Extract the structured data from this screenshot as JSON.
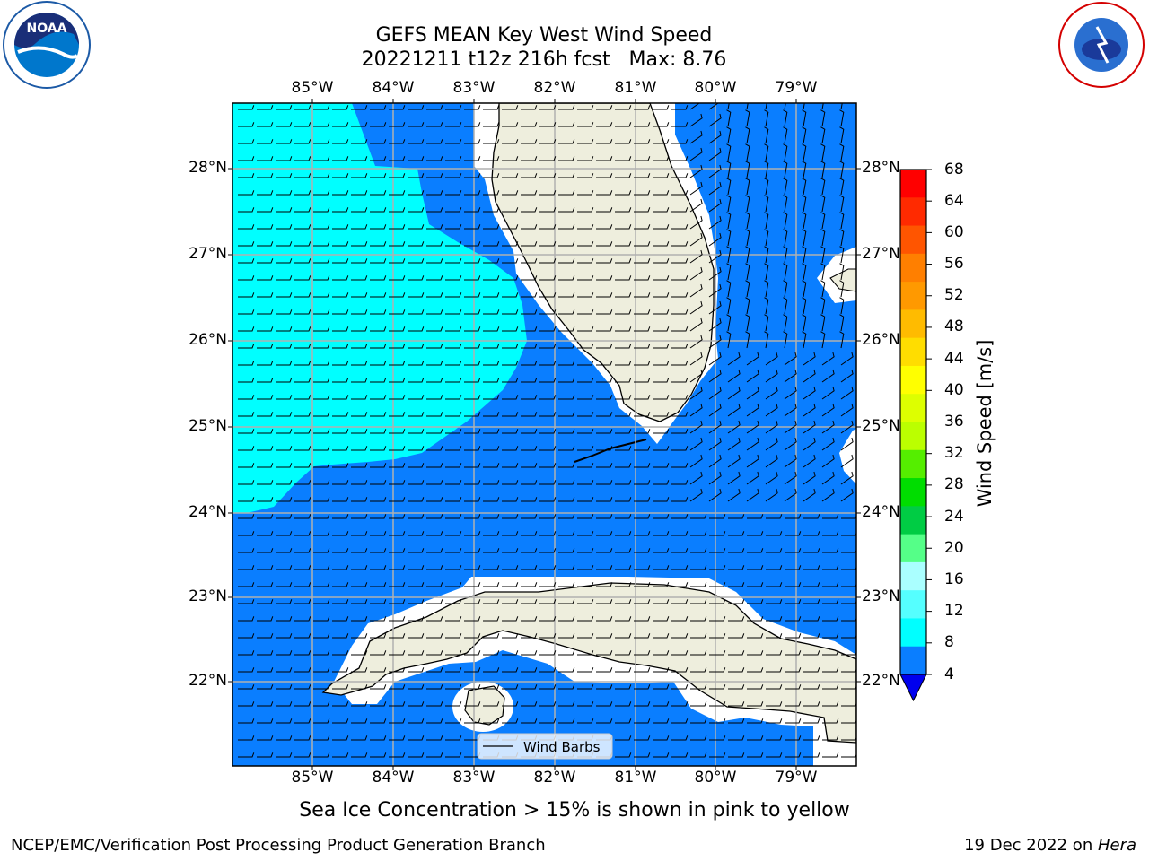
{
  "title": {
    "line1": "GEFS MEAN Key West Wind Speed",
    "line2": "20221211 t12z 216h fcst   Max: 8.76"
  },
  "map": {
    "lon_labels": [
      "85°W",
      "84°W",
      "83°W",
      "82°W",
      "81°W",
      "80°W",
      "79°W"
    ],
    "lat_labels": [
      "28°N",
      "27°N",
      "26°N",
      "25°N",
      "24°N",
      "23°N",
      "22°N"
    ],
    "legend_label": "Wind Barbs",
    "colors": {
      "ocean_blue": "#0a7eff",
      "cyan": "#00ffff",
      "land": "#eeeedd",
      "grid": "#b0b0b0"
    }
  },
  "colorbar": {
    "title": "Wind Speed [m/s]",
    "tick_labels": [
      "68",
      "64",
      "60",
      "56",
      "52",
      "48",
      "44",
      "40",
      "36",
      "32",
      "28",
      "24",
      "20",
      "16",
      "12",
      "8",
      "4"
    ],
    "colors": [
      "#ff0000",
      "#ff2a00",
      "#ff5500",
      "#ff7f00",
      "#ff9900",
      "#ffbb00",
      "#ffdd00",
      "#ffff00",
      "#ddff00",
      "#bbff00",
      "#55ee00",
      "#00dd00",
      "#00cc44",
      "#55ff88",
      "#aaffff",
      "#55ffff",
      "#00ffff",
      "#0a7eff"
    ],
    "under_color": "#0000ee"
  },
  "note": "Sea Ice Concentration > 15% is shown in pink to yellow",
  "footer": {
    "left": "NCEP/EMC/Verification Post Processing Product Generation Branch",
    "right_date": "19 Dec 2022 on ",
    "right_host": "Hera"
  }
}
